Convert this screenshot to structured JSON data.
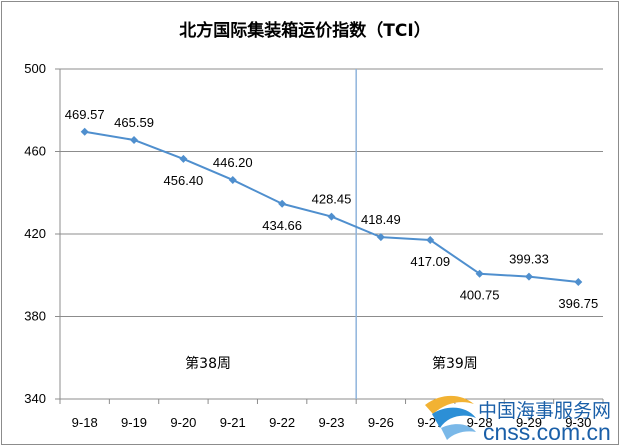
{
  "chart_data": {
    "type": "line",
    "title": "北方国际集装箱运价指数（TCI）",
    "xlabel": "",
    "ylabel": "",
    "categories": [
      "9-18",
      "9-19",
      "9-20",
      "9-21",
      "9-22",
      "9-23",
      "9-26",
      "9-27",
      "9-28",
      "9-29",
      "9-30"
    ],
    "series": [
      {
        "values": [
          469.57,
          465.59,
          456.4,
          446.2,
          434.66,
          428.45,
          418.49,
          417.09,
          400.75,
          399.33,
          396.75
        ]
      }
    ],
    "data_labels": [
      "469.57",
      "465.59",
      "456.40",
      "446.20",
      "434.66",
      "428.45",
      "418.49",
      "417.09",
      "400.75",
      "399.33",
      "396.75"
    ],
    "ylim": [
      340,
      500
    ],
    "yticks": [
      340,
      380,
      420,
      460,
      500
    ],
    "ytick_labels": [
      "340",
      "380",
      "420",
      "460",
      "500"
    ],
    "grid": "horizontal",
    "line_color": "#4f8fce",
    "week_divider_after_index": 5.5,
    "week_labels": [
      {
        "text": "第38周",
        "center_index": 2.5
      },
      {
        "text": "第39周",
        "center_index": 7.5
      }
    ]
  },
  "watermark": {
    "cn_text": "中国海事服务网",
    "en_text": "cnss.com.cn",
    "color": "#1a5fa8"
  }
}
